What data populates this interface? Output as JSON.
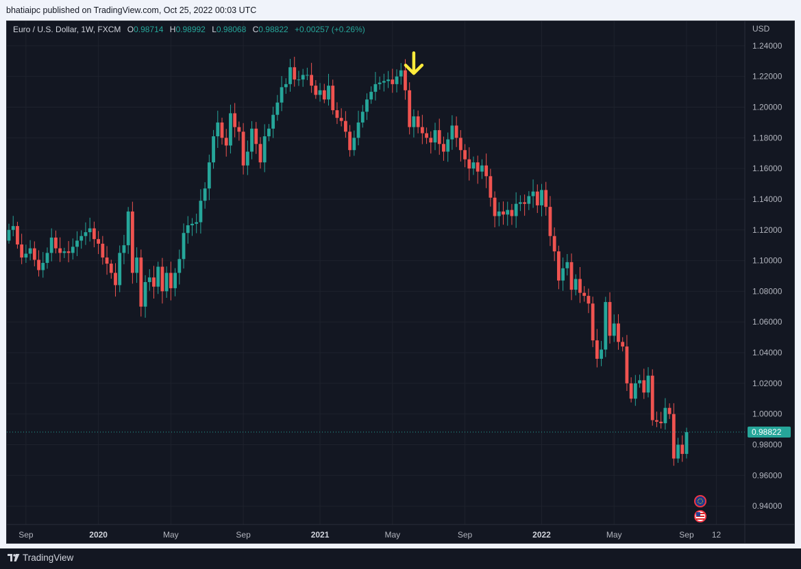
{
  "publish_line": "bhatiaipc published on TradingView.com, Oct 25, 2022 00:03 UTC",
  "legend": {
    "symbol": "Euro / U.S. Dollar, 1W, FXCM",
    "o_label": "O",
    "o_value": "0.98714",
    "h_label": "H",
    "h_value": "0.98992",
    "l_label": "L",
    "l_value": "0.98068",
    "c_label": "C",
    "c_value": "0.98822",
    "change": "+0.00257 (+0.26%)"
  },
  "footer": {
    "brand": "TradingView"
  },
  "colors": {
    "up": "#26a69a",
    "down": "#ef5350",
    "bg": "#131722",
    "grid": "#1e222d",
    "axis_text": "#b2b5be",
    "arrow": "#ffeb3b",
    "price_label": "#26a69a"
  },
  "chart_data": {
    "type": "candlestick",
    "symbol": "Euro / U.S. Dollar, 1W, FXCM",
    "ylabel": "USD",
    "ylim": [
      0.928,
      1.256
    ],
    "y_ticks": [
      1.24,
      1.22,
      1.2,
      1.18,
      1.16,
      1.14,
      1.12,
      1.1,
      1.08,
      1.06,
      1.04,
      1.02,
      1.0,
      0.98,
      0.96,
      0.94
    ],
    "y_tick_labels": [
      "1.24000",
      "1.22000",
      "1.20000",
      "1.18000",
      "1.16000",
      "1.14000",
      "1.12000",
      "1.10000",
      "1.08000",
      "1.06000",
      "1.04000",
      "1.02000",
      "1.00000",
      "0.98000",
      "0.96000",
      "0.94000"
    ],
    "x_ticks": [
      {
        "label": "Sep",
        "week": 4,
        "bold": false
      },
      {
        "label": "2020",
        "week": 21,
        "bold": true
      },
      {
        "label": "May",
        "week": 38,
        "bold": false
      },
      {
        "label": "Sep",
        "week": 55,
        "bold": false
      },
      {
        "label": "2021",
        "week": 73,
        "bold": true
      },
      {
        "label": "May",
        "week": 90,
        "bold": false
      },
      {
        "label": "Sep",
        "week": 107,
        "bold": false
      },
      {
        "label": "2022",
        "week": 125,
        "bold": true
      },
      {
        "label": "May",
        "week": 142,
        "bold": false
      },
      {
        "label": "Sep",
        "week": 159,
        "bold": false
      },
      {
        "label": "12",
        "week": 166,
        "bold": false
      }
    ],
    "last_price": 0.98822,
    "last_price_label": "0.98822",
    "arrow_annotation": {
      "week": 95,
      "price": 1.222,
      "direction": "down"
    },
    "close": [
      1.12,
      1.1225,
      1.1105,
      1.102,
      1.1045,
      1.108,
      1.1005,
      1.0938,
      1.0985,
      1.105,
      1.115,
      1.108,
      1.105,
      1.106,
      1.105,
      1.109,
      1.113,
      1.116,
      1.1185,
      1.121,
      1.114,
      1.111,
      1.102,
      1.098,
      1.092,
      1.084,
      1.105,
      1.11,
      1.132,
      1.092,
      1.102,
      1.07,
      1.086,
      1.089,
      1.083,
      1.096,
      1.08,
      1.092,
      1.082,
      1.092,
      1.101,
      1.118,
      1.123,
      1.124,
      1.125,
      1.139,
      1.147,
      1.164,
      1.181,
      1.19,
      1.18,
      1.175,
      1.196,
      1.187,
      1.184,
      1.162,
      1.171,
      1.186,
      1.176,
      1.164,
      1.181,
      1.186,
      1.195,
      1.203,
      1.213,
      1.215,
      1.226,
      1.218,
      1.218,
      1.221,
      1.221,
      1.214,
      1.208,
      1.211,
      1.205,
      1.214,
      1.198,
      1.193,
      1.191,
      1.184,
      1.172,
      1.18,
      1.19,
      1.197,
      1.205,
      1.21,
      1.215,
      1.216,
      1.217,
      1.218,
      1.215,
      1.22,
      1.224,
      1.211,
      1.187,
      1.194,
      1.187,
      1.183,
      1.18,
      1.177,
      1.185,
      1.176,
      1.171,
      1.179,
      1.188,
      1.18,
      1.172,
      1.166,
      1.16,
      1.164,
      1.158,
      1.162,
      1.155,
      1.141,
      1.129,
      1.132,
      1.13,
      1.133,
      1.129,
      1.137,
      1.138,
      1.137,
      1.142,
      1.145,
      1.136,
      1.146,
      1.135,
      1.116,
      1.106,
      1.087,
      1.095,
      1.099,
      1.081,
      1.088,
      1.079,
      1.077,
      1.072,
      1.048,
      1.036,
      1.042,
      1.073,
      1.051,
      1.059,
      1.047,
      1.044,
      1.02,
      1.01,
      1.02,
      1.022,
      1.014,
      1.025,
      0.996,
      0.995,
      0.994,
      1.004,
      1.0,
      0.971,
      0.98,
      0.974,
      0.9882
    ],
    "candles_note_omitted": "",
    "open": [],
    "high": [],
    "low": []
  }
}
